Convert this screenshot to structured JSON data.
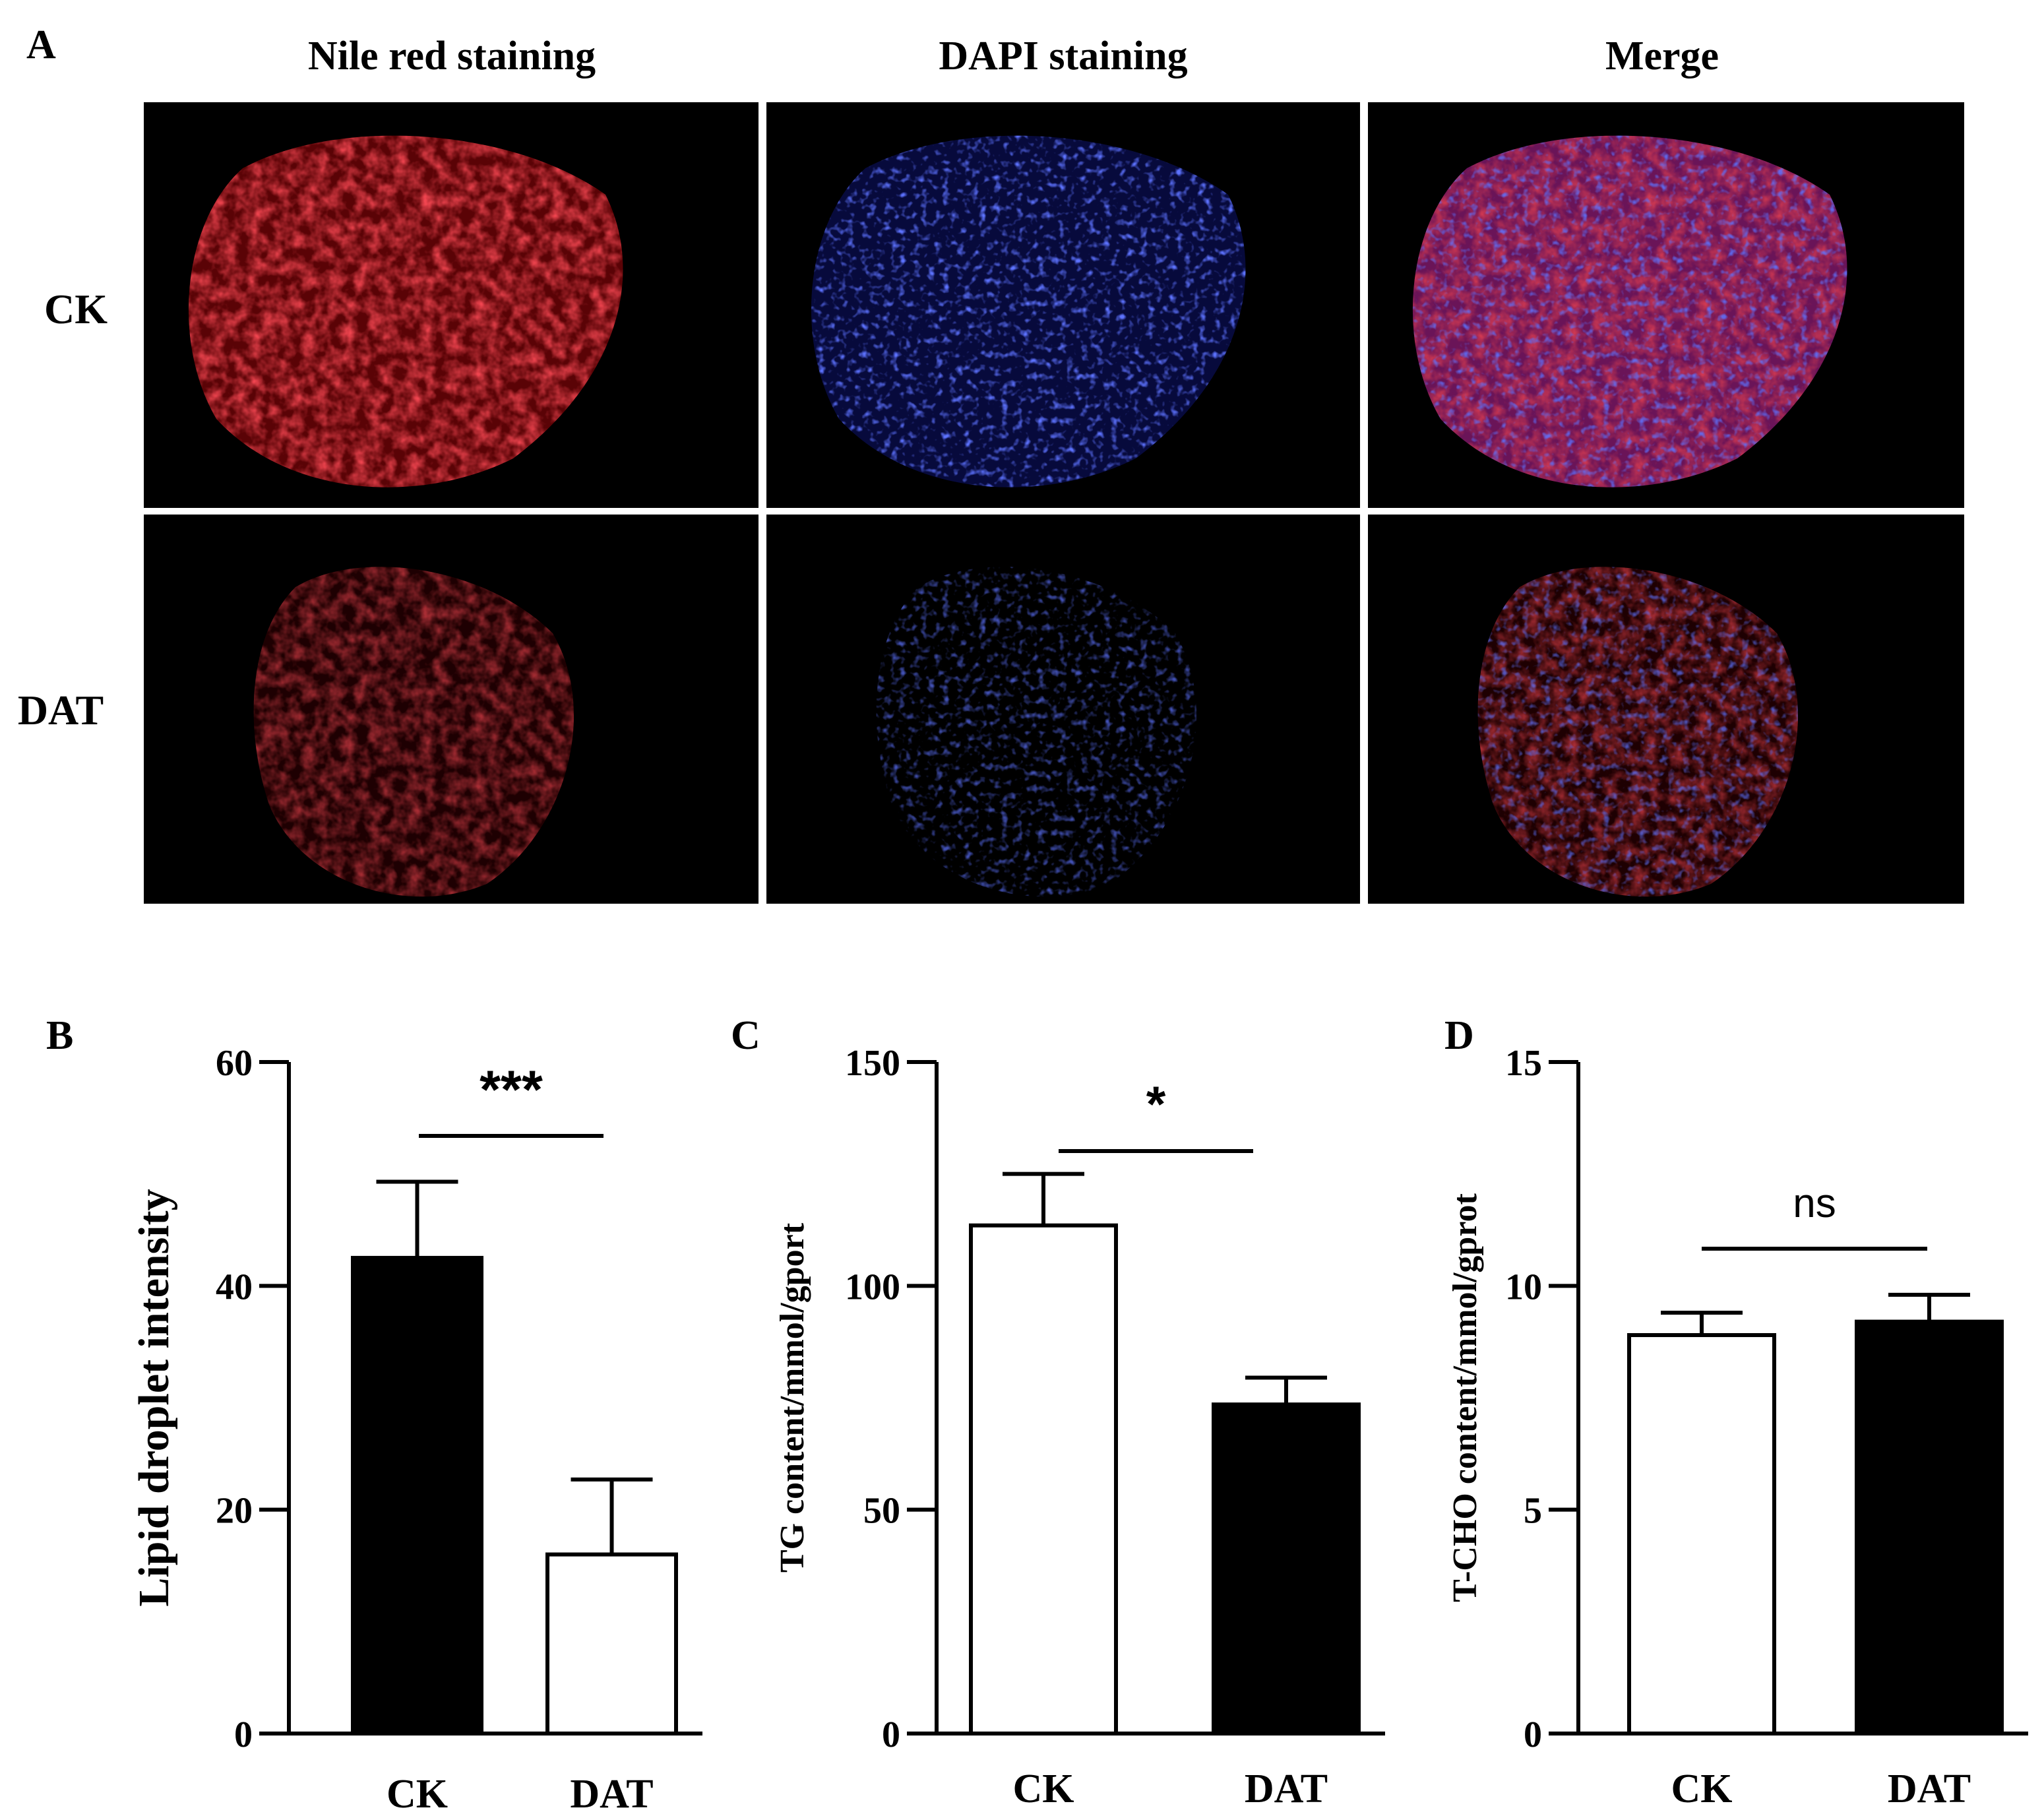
{
  "figure": {
    "micrograph": {
      "panel_label": "A",
      "columns": [
        "Nile red staining",
        "DAPI staining",
        "Merge"
      ],
      "rows": [
        "CK",
        "DAT"
      ],
      "colors": {
        "nile_red": "#e0141e",
        "dapi": "#1c2cff",
        "merge": "#c83cc8",
        "background": "#000000"
      }
    }
  },
  "chart_data": [
    {
      "panel_label": "B",
      "type": "bar",
      "categories": [
        "CK",
        "DAT"
      ],
      "values": [
        42.5,
        16
      ],
      "errors": [
        6.8,
        6.7
      ],
      "fills": [
        "#000000",
        "#ffffff"
      ],
      "title": "",
      "xlabel": "",
      "ylabel": "Lipid droplet intensity",
      "ylim": [
        0,
        60
      ],
      "yticks": [
        0,
        20,
        40,
        60
      ],
      "significance": "***",
      "grid": false
    },
    {
      "panel_label": "C",
      "type": "bar",
      "categories": [
        "CK",
        "DAT"
      ],
      "values": [
        113.5,
        73.5
      ],
      "errors": [
        11.5,
        6
      ],
      "fills": [
        "#ffffff",
        "#000000"
      ],
      "title": "",
      "xlabel": "",
      "ylabel": "TG content/mmol/gport",
      "ylim": [
        0,
        150
      ],
      "yticks": [
        0,
        50,
        100,
        150
      ],
      "significance": "*",
      "grid": false
    },
    {
      "panel_label": "D",
      "type": "bar",
      "categories": [
        "CK",
        "DAT"
      ],
      "values": [
        8.9,
        9.2
      ],
      "errors": [
        0.5,
        0.6
      ],
      "fills": [
        "#ffffff",
        "#000000"
      ],
      "title": "",
      "xlabel": "",
      "ylabel": "T-CHO content/mmol/gprot",
      "ylim": [
        0,
        15
      ],
      "yticks": [
        0,
        5,
        10,
        15
      ],
      "significance": "ns",
      "grid": false
    }
  ]
}
